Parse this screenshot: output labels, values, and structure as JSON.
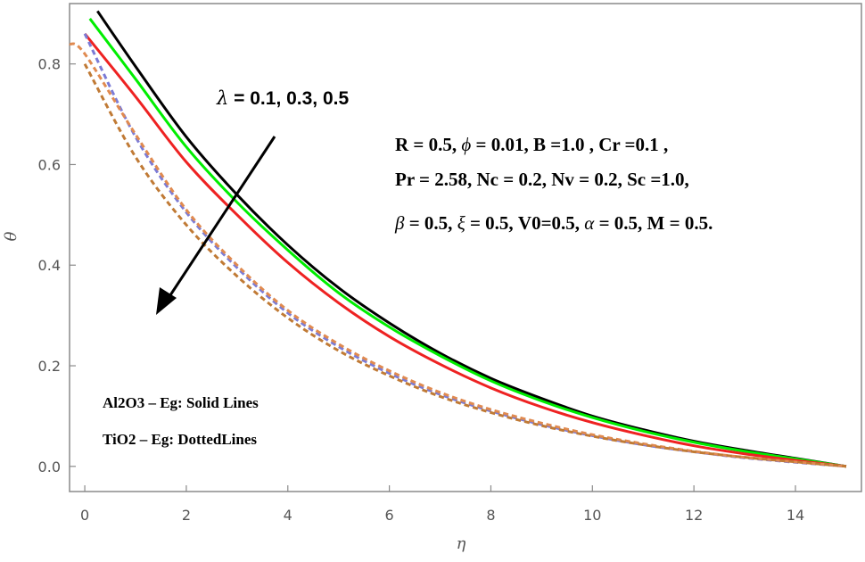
{
  "chart_data": {
    "type": "line",
    "xlabel": "η",
    "ylabel": "θ",
    "xlim": [
      -0.3,
      15.3
    ],
    "ylim": [
      -0.05,
      0.92
    ],
    "x_ticks": [
      0,
      2,
      4,
      6,
      8,
      10,
      12,
      14
    ],
    "y_ticks": [
      0.0,
      0.2,
      0.4,
      0.6,
      0.8
    ],
    "x_tick_labels": [
      "0",
      "2",
      "4",
      "6",
      "8",
      "10",
      "12",
      "14"
    ],
    "y_tick_labels": [
      "0.0",
      "0.2",
      "0.4",
      "0.6",
      "0.8"
    ],
    "grid": false,
    "series": [
      {
        "color": "#000000",
        "style": "solid",
        "x": [
          0.25,
          1,
          2,
          3,
          4,
          5,
          6,
          7,
          8,
          9,
          10,
          11,
          12,
          13,
          14,
          15
        ],
        "y": [
          0.905,
          0.795,
          0.655,
          0.54,
          0.44,
          0.355,
          0.285,
          0.225,
          0.175,
          0.135,
          0.1,
          0.073,
          0.05,
          0.032,
          0.016,
          0.0
        ]
      },
      {
        "color": "#00ee00",
        "style": "solid",
        "x": [
          0.1,
          1,
          2,
          3,
          4,
          5,
          6,
          7,
          8,
          9,
          10,
          11,
          12,
          13,
          14,
          15
        ],
        "y": [
          0.89,
          0.77,
          0.635,
          0.525,
          0.43,
          0.345,
          0.277,
          0.22,
          0.17,
          0.13,
          0.097,
          0.07,
          0.048,
          0.03,
          0.015,
          0.0
        ]
      },
      {
        "color": "#ee2222",
        "style": "solid",
        "x": [
          0,
          1,
          2,
          3,
          4,
          5,
          6,
          7,
          8,
          9,
          10,
          11,
          12,
          13,
          14,
          15
        ],
        "y": [
          0.86,
          0.735,
          0.605,
          0.5,
          0.405,
          0.325,
          0.258,
          0.203,
          0.156,
          0.118,
          0.087,
          0.062,
          0.041,
          0.025,
          0.012,
          0.0
        ]
      },
      {
        "color": "#7b7bd6",
        "style": "dashed",
        "x": [
          0,
          1,
          2,
          3,
          4,
          5,
          6,
          7,
          8,
          9,
          10,
          11,
          12,
          13,
          14,
          15
        ],
        "y": [
          0.86,
          0.655,
          0.505,
          0.395,
          0.305,
          0.238,
          0.185,
          0.143,
          0.11,
          0.083,
          0.061,
          0.043,
          0.029,
          0.017,
          0.008,
          0.0
        ]
      },
      {
        "color": "#e08a50",
        "style": "dashed",
        "x": [
          -0.3,
          0,
          1,
          2,
          3,
          4,
          5,
          6,
          7,
          8,
          9,
          10,
          11,
          12,
          13,
          14,
          15
        ],
        "y": [
          0.84,
          0.82,
          0.66,
          0.51,
          0.4,
          0.31,
          0.243,
          0.19,
          0.147,
          0.113,
          0.086,
          0.063,
          0.045,
          0.03,
          0.018,
          0.009,
          0.0
        ]
      },
      {
        "color": "#c07a35",
        "style": "dashed",
        "x": [
          0,
          1,
          2,
          3,
          4,
          5,
          6,
          7,
          8,
          9,
          10,
          11,
          12,
          13,
          14,
          15
        ],
        "y": [
          0.8,
          0.615,
          0.48,
          0.378,
          0.295,
          0.23,
          0.18,
          0.139,
          0.107,
          0.081,
          0.06,
          0.043,
          0.029,
          0.018,
          0.009,
          0.0
        ]
      }
    ],
    "annotations": {
      "lambda_symbol": "λ",
      "lambda_values": " =  0.1, 0.3, 0.5",
      "params_line1_pre": "R = 0.5, ",
      "params_phi": "ϕ",
      "params_line1_post": " = 0.01, B =1.0 , Cr =0.1 ,",
      "params_line2": "Pr = 2.58, Nc = 0.2, Nv = 0.2, Sc =1.0,",
      "params_beta": "β",
      "params_line3_a": " = 0.5, ",
      "params_xi": "ξ",
      "params_line3_b": " = 0.5,  V0=0.5, ",
      "params_alpha": "α",
      "params_line3_c": " = 0.5, M = 0.5.",
      "legend_solid": "Al2O3 – Eg: Solid Lines",
      "legend_dotted": "TiO2 – Eg: DottedLines"
    }
  }
}
